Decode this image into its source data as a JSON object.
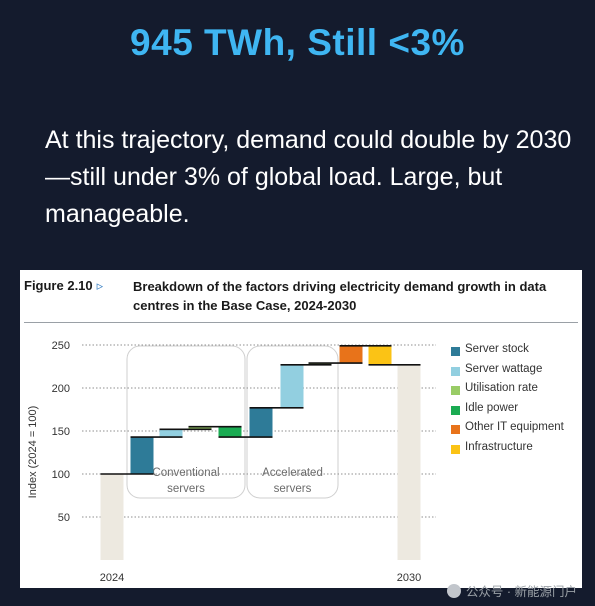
{
  "headline": "945 TWh, Still <3%",
  "lead": "At this trajectory, demand could double by 2030—still under 3% of global load. Large, but manageable.",
  "figure": {
    "label": "Figure 2.10",
    "arrow": "▹",
    "title": "Breakdown of the factors driving electricity demand growth in data centres in the Base Case, 2024-2030"
  },
  "chart_data": {
    "type": "bar",
    "subtype": "waterfall",
    "ylabel": "Index (2024 = 100)",
    "ylim": [
      0,
      250
    ],
    "yticks": [
      50,
      100,
      150,
      200,
      250
    ],
    "x_labels": [
      "2024",
      "2030"
    ],
    "grid": true,
    "legend_position": "right",
    "legend": [
      {
        "name": "Server stock",
        "color": "#2e7b98"
      },
      {
        "name": "Server wattage",
        "color": "#92cfe0"
      },
      {
        "name": "Utilisation rate",
        "color": "#99cc66"
      },
      {
        "name": "Idle power",
        "color": "#1aab52"
      },
      {
        "name": "Other IT equipment",
        "color": "#e8731a"
      },
      {
        "name": "Infrastructure",
        "color": "#fbc315"
      }
    ],
    "groups": [
      {
        "label_lines": [
          "Conventional",
          "servers"
        ]
      },
      {
        "label_lines": [
          "Accelerated",
          "servers"
        ]
      }
    ],
    "bars": [
      {
        "category": "2024",
        "kind": "total",
        "value": 100,
        "color": "#ede9e0"
      },
      {
        "category": "Server stock",
        "group": 0,
        "from": 100,
        "to": 143,
        "color": "#2e7b98"
      },
      {
        "category": "Server wattage",
        "group": 0,
        "from": 143,
        "to": 152,
        "color": "#92cfe0"
      },
      {
        "category": "Utilisation rate",
        "group": 0,
        "from": 152,
        "to": 155,
        "color": "#99cc66"
      },
      {
        "category": "Idle power",
        "group": 0,
        "from": 155,
        "to": 143,
        "color": "#1aab52"
      },
      {
        "category": "Server stock",
        "group": 1,
        "from": 143,
        "to": 177,
        "color": "#2e7b98"
      },
      {
        "category": "Server wattage",
        "group": 1,
        "from": 177,
        "to": 227,
        "color": "#92cfe0"
      },
      {
        "category": "Utilisation rate",
        "group": 1,
        "from": 227,
        "to": 229,
        "color": "#99cc66"
      },
      {
        "category": "Other IT equipment",
        "from": 229,
        "to": 249,
        "color": "#e8731a"
      },
      {
        "category": "Infrastructure",
        "from": 249,
        "to": 227,
        "color": "#fbc315"
      },
      {
        "category": "2030",
        "kind": "total",
        "value": 227,
        "color": "#ede9e0"
      }
    ]
  },
  "watermark": "公众号 · 新能源门户"
}
